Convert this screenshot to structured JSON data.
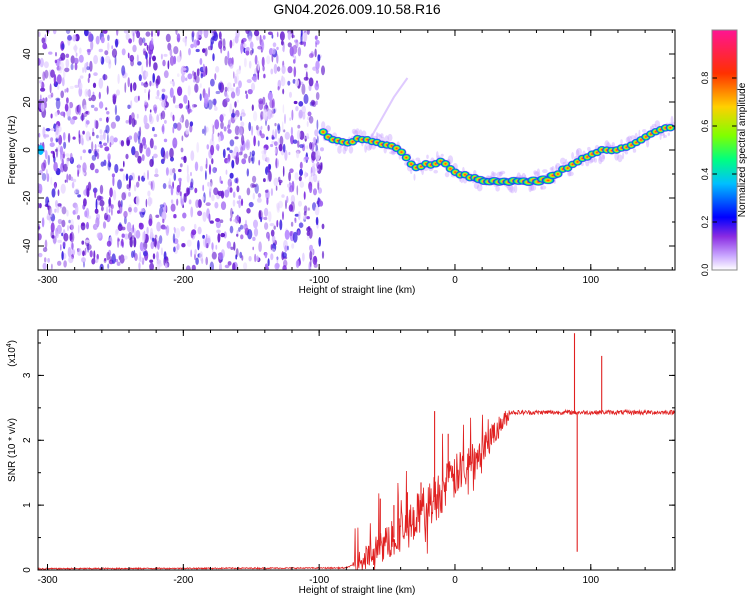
{
  "figure": {
    "title": "GN04.2026.009.10.58.R16"
  },
  "chart_data": [
    {
      "type": "heatmap",
      "name": "spectrogram",
      "xlabel": "Height of straight line (km)",
      "ylabel": "Frequency (Hz)",
      "xlim": [
        -307,
        162
      ],
      "ylim": [
        -50,
        50
      ],
      "xticks": [
        -300,
        -200,
        -100,
        0,
        100
      ],
      "yticks": [
        -40,
        -20,
        0,
        20,
        40
      ],
      "noise_region_x": [
        -307,
        -97
      ],
      "noise_density": "dense violet speckle",
      "signal_track": {
        "x": [
          -97,
          -90,
          -80,
          -70,
          -60,
          -50,
          -40,
          -30,
          -20,
          -10,
          0,
          10,
          20,
          40,
          60,
          70,
          80,
          90,
          100,
          110,
          120,
          130,
          140,
          150,
          162
        ],
        "y": [
          7,
          4,
          3,
          5,
          3,
          2,
          0,
          -8,
          -6,
          -5,
          -9,
          -11,
          -13,
          -13,
          -13,
          -12,
          -8,
          -5,
          -2,
          0,
          0,
          2,
          5,
          8,
          10
        ]
      },
      "colorbar": {
        "label": "Normalized spectral amplitude",
        "range": [
          0,
          1
        ],
        "ticks": [
          "0.0",
          "0.2",
          "0.4",
          "0.6",
          "0.8"
        ],
        "colors": [
          "#ffffff",
          "#b47cff",
          "#7f00ff",
          "#0000ff",
          "#00c8ff",
          "#00ff60",
          "#c8ff00",
          "#ffc800",
          "#ff3000",
          "#ff1493"
        ]
      }
    },
    {
      "type": "line",
      "name": "snr",
      "xlabel": "Height of straight line (km)",
      "ylabel": "SNR (10 * v/v)",
      "yscale_label_prefix": "(x10",
      "yscale_label_exp": "4",
      "yscale_label_suffix": ")",
      "xlim": [
        -307,
        162
      ],
      "ylim": [
        0,
        3.7
      ],
      "xticks": [
        -300,
        -200,
        -100,
        0,
        100
      ],
      "yticks": [
        0,
        1,
        2,
        3
      ],
      "series": [
        {
          "name": "SNR",
          "color": "#e02020",
          "x": [
            -307,
            -200,
            -100,
            -80,
            -70,
            -60,
            -50,
            -40,
            -30,
            -20,
            -10,
            0,
            10,
            20,
            30,
            40,
            50,
            60,
            70,
            80,
            85,
            88,
            90,
            92,
            95,
            100,
            105,
            108,
            110,
            115,
            120,
            140,
            162
          ],
          "y": [
            0.02,
            0.03,
            0.04,
            0.06,
            0.15,
            0.3,
            0.45,
            0.55,
            0.75,
            0.95,
            1.3,
            1.55,
            1.85,
            2.1,
            2.3,
            2.4,
            2.42,
            2.43,
            2.45,
            2.46,
            2.45,
            3.5,
            0.3,
            2.4,
            2.5,
            2.45,
            2.4,
            2.8,
            2.35,
            2.42,
            2.42,
            2.42,
            2.4
          ]
        }
      ],
      "spikes": [
        {
          "x": -55,
          "y": 1.1
        },
        {
          "x": -45,
          "y": 1.0
        },
        {
          "x": -35,
          "y": 1.2
        },
        {
          "x": -25,
          "y": 1.35
        },
        {
          "x": -15,
          "y": 2.45
        },
        {
          "x": -5,
          "y": 2.1
        },
        {
          "x": 88,
          "y": 3.65
        },
        {
          "x": 90,
          "y": 0.28
        },
        {
          "x": 108,
          "y": 3.3
        }
      ]
    }
  ]
}
